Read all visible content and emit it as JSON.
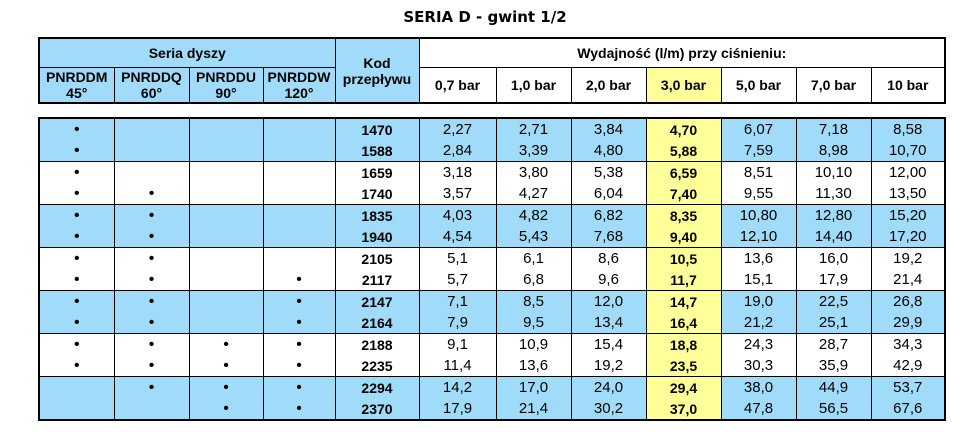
{
  "title": "SERIA D - gwint 1/2",
  "header": {
    "series_group": "Seria dyszy",
    "kod_line1": "Kod",
    "kod_line2": "przepływu",
    "flow_group": "Wydajność (l/m) przy ciśnieniu:",
    "series": [
      {
        "name": "PNRDDM",
        "angle": "45°"
      },
      {
        "name": "PNRDDQ",
        "angle": "60°"
      },
      {
        "name": "PNRDDU",
        "angle": "90°"
      },
      {
        "name": "PNRDDW",
        "angle": "120°"
      }
    ],
    "pressures": [
      "0,7 bar",
      "1,0 bar",
      "2,0 bar",
      "3,0 bar",
      "5,0 bar",
      "7,0 bar",
      "10 bar"
    ]
  },
  "dot": "•",
  "colors": {
    "blue": "#a0dcfa",
    "yellow": "#ffff99"
  },
  "rows": [
    {
      "kod": "1470",
      "s": [
        1,
        0,
        0,
        0
      ],
      "v": [
        "2,27",
        "2,71",
        "3,84",
        "4,70",
        "6,07",
        "7,18",
        "8,58"
      ]
    },
    {
      "kod": "1588",
      "s": [
        1,
        0,
        0,
        0
      ],
      "v": [
        "2,84",
        "3,39",
        "4,80",
        "5,88",
        "7,59",
        "8,98",
        "10,70"
      ]
    },
    {
      "kod": "1659",
      "s": [
        1,
        0,
        0,
        0
      ],
      "v": [
        "3,18",
        "3,80",
        "5,38",
        "6,59",
        "8,51",
        "10,10",
        "12,00"
      ]
    },
    {
      "kod": "1740",
      "s": [
        1,
        1,
        0,
        0
      ],
      "v": [
        "3,57",
        "4,27",
        "6,04",
        "7,40",
        "9,55",
        "11,30",
        "13,50"
      ]
    },
    {
      "kod": "1835",
      "s": [
        1,
        1,
        0,
        0
      ],
      "v": [
        "4,03",
        "4,82",
        "6,82",
        "8,35",
        "10,80",
        "12,80",
        "15,20"
      ]
    },
    {
      "kod": "1940",
      "s": [
        1,
        1,
        0,
        0
      ],
      "v": [
        "4,54",
        "5,43",
        "7,68",
        "9,40",
        "12,10",
        "14,40",
        "17,20"
      ]
    },
    {
      "kod": "2105",
      "s": [
        1,
        1,
        0,
        0
      ],
      "v": [
        "5,1",
        "6,1",
        "8,6",
        "10,5",
        "13,6",
        "16,0",
        "19,2"
      ]
    },
    {
      "kod": "2117",
      "s": [
        1,
        1,
        0,
        1
      ],
      "v": [
        "5,7",
        "6,8",
        "9,6",
        "11,7",
        "15,1",
        "17,9",
        "21,4"
      ]
    },
    {
      "kod": "2147",
      "s": [
        1,
        1,
        0,
        1
      ],
      "v": [
        "7,1",
        "8,5",
        "12,0",
        "14,7",
        "19,0",
        "22,5",
        "26,8"
      ]
    },
    {
      "kod": "2164",
      "s": [
        1,
        1,
        0,
        1
      ],
      "v": [
        "7,9",
        "9,5",
        "13,4",
        "16,4",
        "21,2",
        "25,1",
        "29,9"
      ]
    },
    {
      "kod": "2188",
      "s": [
        1,
        1,
        1,
        1
      ],
      "v": [
        "9,1",
        "10,9",
        "15,4",
        "18,8",
        "24,3",
        "28,7",
        "34,3"
      ]
    },
    {
      "kod": "2235",
      "s": [
        1,
        1,
        1,
        1
      ],
      "v": [
        "11,4",
        "13,6",
        "19,2",
        "23,5",
        "30,3",
        "35,9",
        "42,9"
      ]
    },
    {
      "kod": "2294",
      "s": [
        0,
        1,
        1,
        1
      ],
      "v": [
        "14,2",
        "17,0",
        "24,0",
        "29,4",
        "38,0",
        "44,9",
        "53,7"
      ]
    },
    {
      "kod": "2370",
      "s": [
        0,
        0,
        1,
        1
      ],
      "v": [
        "17,9",
        "21,4",
        "30,2",
        "37,0",
        "47,8",
        "56,5",
        "67,6"
      ]
    }
  ]
}
